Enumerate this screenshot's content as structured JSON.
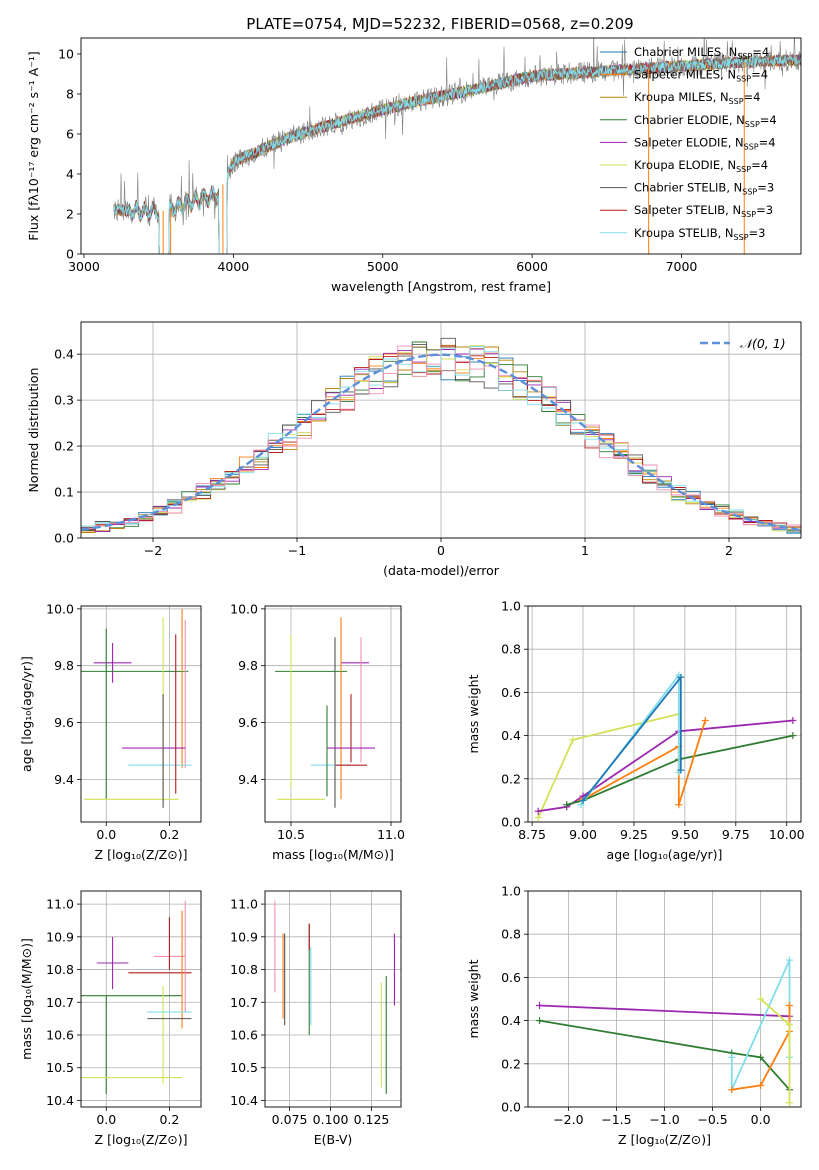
{
  "title": "PLATE=0754, MJD=52232, FIBERID=0568, z=0.209",
  "colors": {
    "chab_miles": "#1f77b4",
    "salp_miles": "#ff7f0e",
    "krou_miles": "#b8860b",
    "chab_elodie": "#2e7d32",
    "salp_elodie": "#9c27b0",
    "krou_elodie": "#d4e157",
    "chab_stelib": "#555555",
    "salp_stelib": "#b71c1c",
    "krou_stelib": "#80deea",
    "gauss": "#5b8fdc",
    "pink": "#f48fb1",
    "grey_sed": "#808080"
  },
  "chart_data": [
    {
      "id": "spectrum",
      "type": "line",
      "xlabel": "wavelength [Angstrom, rest frame]",
      "ylabel": "Flux [fλ10⁻¹⁷ erg cm⁻² s⁻¹ A⁻¹]",
      "xlim": [
        2980,
        7800
      ],
      "ylim": [
        0,
        10.8
      ],
      "xticks": [
        "3000",
        "4000",
        "5000",
        "6000",
        "7000"
      ],
      "yticks": [
        "0",
        "2",
        "4",
        "6",
        "8",
        "10"
      ],
      "continuum_x": [
        3200,
        3500,
        3900,
        4000,
        4400,
        4800,
        5200,
        5600,
        6000,
        6400,
        6800,
        7400,
        7800
      ],
      "continuum_y": [
        2.2,
        2.1,
        3.0,
        4.6,
        5.9,
        6.8,
        7.6,
        8.2,
        8.9,
        9.1,
        9.3,
        9.6,
        9.7
      ],
      "legend": [
        {
          "label": "Chabrier MILES, N",
          "sub": "SSP",
          "tail": "=4",
          "color": "chab_miles"
        },
        {
          "label": "Salpeter MILES, N",
          "sub": "SSP",
          "tail": "=4",
          "color": "salp_miles"
        },
        {
          "label": "Kroupa MILES, N",
          "sub": "SSP",
          "tail": "=4",
          "color": "krou_miles"
        },
        {
          "label": "Chabrier ELODIE, N",
          "sub": "SSP",
          "tail": "=4",
          "color": "chab_elodie"
        },
        {
          "label": "Salpeter ELODIE, N",
          "sub": "SSP",
          "tail": "=4",
          "color": "salp_elodie"
        },
        {
          "label": "Kroupa ELODIE, N",
          "sub": "SSP",
          "tail": "=4",
          "color": "krou_elodie"
        },
        {
          "label": "Chabrier STELIB, N",
          "sub": "SSP",
          "tail": "=3",
          "color": "chab_stelib"
        },
        {
          "label": "Salpeter STELIB, N",
          "sub": "SSP",
          "tail": "=3",
          "color": "salp_stelib"
        },
        {
          "label": "Kroupa STELIB, N",
          "sub": "SSP",
          "tail": "=3",
          "color": "krou_stelib"
        }
      ]
    },
    {
      "id": "residuals",
      "type": "line",
      "xlabel": "(data-model)/error",
      "ylabel": "Normed distribution",
      "xlim": [
        -2.5,
        2.5
      ],
      "ylim": [
        0,
        0.47
      ],
      "xticks": [
        "−2",
        "−1",
        "0",
        "1",
        "2"
      ],
      "yticks": [
        "0.0",
        "0.1",
        "0.2",
        "0.3",
        "0.4"
      ],
      "legend_label": "𝒩(0, 1)",
      "gauss_mu": 0,
      "gauss_sigma": 1
    },
    {
      "id": "age_vs_Z",
      "type": "scatter",
      "xlabel": "Z [log₁₀(Z/Z⊙)]",
      "ylabel": "age  [log₁₀(age/yr)]",
      "xlim": [
        -0.08,
        0.3
      ],
      "ylim": [
        9.25,
        10.01
      ],
      "xticks": [
        "0.0",
        "0.2"
      ],
      "yticks": [
        "9.4",
        "9.6",
        "9.8",
        "10.0"
      ],
      "points": [
        {
          "x": 0.02,
          "y": 9.81,
          "ex": 0.06,
          "ey": 0.07,
          "color": "salp_elodie"
        },
        {
          "x": 0.08,
          "y": 9.78,
          "ex": 0.18,
          "ey": 0.0,
          "color": "chab_elodie"
        },
        {
          "x": 0.0,
          "y": 9.63,
          "ex": 0.0,
          "ey": 0.3,
          "color": "chab_elodie"
        },
        {
          "x": 0.18,
          "y": 9.65,
          "ex": 0.0,
          "ey": 0.32,
          "color": "krou_elodie"
        },
        {
          "x": 0.24,
          "y": 9.72,
          "ex": 0.0,
          "ey": 0.28,
          "color": "salp_miles"
        },
        {
          "x": 0.25,
          "y": 9.7,
          "ex": 0.0,
          "ey": 0.26,
          "color": "pink"
        },
        {
          "x": 0.15,
          "y": 9.51,
          "ex": 0.1,
          "ey": 0.0,
          "color": "salp_elodie"
        },
        {
          "x": 0.17,
          "y": 9.45,
          "ex": 0.1,
          "ey": 0.0,
          "color": "krou_stelib"
        },
        {
          "x": 0.08,
          "y": 9.33,
          "ex": 0.15,
          "ey": 0.0,
          "color": "krou_elodie"
        },
        {
          "x": 0.18,
          "y": 9.5,
          "ex": 0.0,
          "ey": 0.2,
          "color": "chab_stelib"
        },
        {
          "x": 0.22,
          "y": 9.63,
          "ex": 0.0,
          "ey": 0.28,
          "color": "salp_stelib"
        }
      ]
    },
    {
      "id": "age_vs_mass",
      "type": "scatter",
      "xlabel": "mass [log₁₀(M/M⊙)]",
      "ylabel": "",
      "xlim": [
        10.37,
        11.05
      ],
      "ylim": [
        9.25,
        10.01
      ],
      "xticks": [
        "10.5",
        "11.0"
      ],
      "yticks": [
        "9.4",
        "9.6",
        "9.8",
        "10.0"
      ],
      "points": [
        {
          "x": 10.6,
          "y": 9.78,
          "ex": 0.18,
          "ey": 0.0,
          "color": "chab_elodie"
        },
        {
          "x": 10.82,
          "y": 9.81,
          "ex": 0.07,
          "ey": 0.0,
          "color": "salp_elodie"
        },
        {
          "x": 10.5,
          "y": 9.64,
          "ex": 0.0,
          "ey": 0.27,
          "color": "krou_elodie"
        },
        {
          "x": 10.75,
          "y": 9.65,
          "ex": 0.0,
          "ey": 0.32,
          "color": "salp_miles"
        },
        {
          "x": 10.72,
          "y": 9.6,
          "ex": 0.0,
          "ey": 0.3,
          "color": "chab_stelib"
        },
        {
          "x": 10.85,
          "y": 9.68,
          "ex": 0.0,
          "ey": 0.22,
          "color": "pink"
        },
        {
          "x": 10.8,
          "y": 9.58,
          "ex": 0.0,
          "ey": 0.12,
          "color": "salp_stelib"
        },
        {
          "x": 10.8,
          "y": 9.51,
          "ex": 0.12,
          "ey": 0.0,
          "color": "salp_elodie"
        },
        {
          "x": 10.7,
          "y": 9.45,
          "ex": 0.1,
          "ey": 0.0,
          "color": "krou_stelib"
        },
        {
          "x": 10.8,
          "y": 9.45,
          "ex": 0.08,
          "ey": 0.0,
          "color": "salp_stelib"
        },
        {
          "x": 10.55,
          "y": 9.33,
          "ex": 0.12,
          "ey": 0.0,
          "color": "krou_elodie"
        },
        {
          "x": 10.68,
          "y": 9.5,
          "ex": 0.0,
          "ey": 0.16,
          "color": "chab_elodie"
        }
      ]
    },
    {
      "id": "weight_vs_age",
      "type": "line",
      "xlabel": "age  [log₁₀(age/yr)]",
      "ylabel": "mass weight",
      "xlim": [
        8.73,
        10.07
      ],
      "ylim": [
        0,
        1
      ],
      "xticks": [
        "8.75",
        "9.00",
        "9.25",
        "9.50",
        "9.75",
        "10.00"
      ],
      "yticks": [
        "0.0",
        "0.2",
        "0.4",
        "0.6",
        "0.8",
        "1.0"
      ],
      "series": [
        {
          "x": [
            8.78,
            8.95,
            9.47
          ],
          "y": [
            0.02,
            0.38,
            0.5
          ],
          "color": "krou_elodie"
        },
        {
          "x": [
            8.78,
            8.92,
            9.0,
            9.47,
            10.03
          ],
          "y": [
            0.05,
            0.07,
            0.12,
            0.42,
            0.47
          ],
          "color": "salp_elodie"
        },
        {
          "x": [
            8.92,
            9.0,
            9.47,
            10.03
          ],
          "y": [
            0.08,
            0.1,
            0.29,
            0.4
          ],
          "color": "chab_elodie"
        },
        {
          "x": [
            8.99,
            9.47,
            9.47,
            9.6
          ],
          "y": [
            0.1,
            0.35,
            0.08,
            0.47
          ],
          "color": "salp_miles"
        },
        {
          "x": [
            8.99,
            9.47,
            9.47
          ],
          "y": [
            0.08,
            0.68,
            0.23
          ],
          "color": "krou_stelib"
        },
        {
          "x": [
            9.0,
            9.48,
            9.48
          ],
          "y": [
            0.1,
            0.67,
            0.24
          ],
          "color": "chab_miles"
        }
      ]
    },
    {
      "id": "mass_vs_Z",
      "type": "scatter",
      "xlabel": "Z [log₁₀(Z/Z⊙)]",
      "ylabel": "mass [log₁₀(M/M⊙)]",
      "xlim": [
        -0.08,
        0.3
      ],
      "ylim": [
        10.38,
        11.04
      ],
      "xticks": [
        "0.0",
        "0.2"
      ],
      "yticks": [
        "10.4",
        "10.5",
        "10.6",
        "10.7",
        "10.8",
        "10.9",
        "11.0"
      ],
      "points": [
        {
          "x": 0.02,
          "y": 10.82,
          "ex": 0.05,
          "ey": 0.0,
          "color": "salp_elodie"
        },
        {
          "x": 0.02,
          "y": 10.82,
          "ex": 0.0,
          "ey": 0.08,
          "color": "salp_elodie"
        },
        {
          "x": 0.08,
          "y": 10.72,
          "ex": 0.16,
          "ey": 0.0,
          "color": "chab_elodie"
        },
        {
          "x": 0.0,
          "y": 10.57,
          "ex": 0.0,
          "ey": 0.15,
          "color": "chab_elodie"
        },
        {
          "x": 0.08,
          "y": 10.47,
          "ex": 0.16,
          "ey": 0.0,
          "color": "krou_elodie"
        },
        {
          "x": 0.18,
          "y": 10.6,
          "ex": 0.0,
          "ey": 0.15,
          "color": "krou_elodie"
        },
        {
          "x": 0.2,
          "y": 10.84,
          "ex": 0.05,
          "ey": 0.0,
          "color": "pink"
        },
        {
          "x": 0.2,
          "y": 10.88,
          "ex": 0.0,
          "ey": 0.08,
          "color": "salp_stelib"
        },
        {
          "x": 0.17,
          "y": 10.79,
          "ex": 0.1,
          "ey": 0.0,
          "color": "salp_stelib"
        },
        {
          "x": 0.24,
          "y": 10.8,
          "ex": 0.0,
          "ey": 0.18,
          "color": "salp_miles"
        },
        {
          "x": 0.25,
          "y": 10.84,
          "ex": 0.0,
          "ey": 0.17,
          "color": "pink"
        },
        {
          "x": 0.2,
          "y": 10.67,
          "ex": 0.07,
          "ey": 0.0,
          "color": "krou_stelib"
        },
        {
          "x": 0.2,
          "y": 10.65,
          "ex": 0.07,
          "ey": 0.0,
          "color": "chab_stelib"
        }
      ]
    },
    {
      "id": "mass_vs_EBV",
      "type": "scatter",
      "xlabel": "E(B-V)",
      "ylabel": "",
      "xlim": [
        0.06,
        0.143
      ],
      "ylim": [
        10.38,
        11.04
      ],
      "xticks": [
        "0.075",
        "0.100",
        "0.125"
      ],
      "yticks": [
        "10.4",
        "10.5",
        "10.6",
        "10.7",
        "10.8",
        "10.9",
        "11.0"
      ],
      "points": [
        {
          "x": 0.066,
          "y": 10.87,
          "ex": 0.0,
          "ey": 0.14,
          "color": "pink"
        },
        {
          "x": 0.071,
          "y": 10.78,
          "ex": 0.0,
          "ey": 0.13,
          "color": "salp_miles"
        },
        {
          "x": 0.072,
          "y": 10.77,
          "ex": 0.0,
          "ey": 0.14,
          "color": "chab_stelib"
        },
        {
          "x": 0.087,
          "y": 10.77,
          "ex": 0.0,
          "ey": 0.17,
          "color": "chab_elodie"
        },
        {
          "x": 0.087,
          "y": 10.9,
          "ex": 0.0,
          "ey": 0.04,
          "color": "salp_stelib"
        },
        {
          "x": 0.088,
          "y": 10.75,
          "ex": 0.0,
          "ey": 0.12,
          "color": "krou_stelib"
        },
        {
          "x": 0.131,
          "y": 10.6,
          "ex": 0.0,
          "ey": 0.16,
          "color": "krou_elodie"
        },
        {
          "x": 0.134,
          "y": 10.6,
          "ex": 0.0,
          "ey": 0.18,
          "color": "chab_elodie"
        },
        {
          "x": 0.139,
          "y": 10.8,
          "ex": 0.0,
          "ey": 0.11,
          "color": "salp_elodie"
        }
      ]
    },
    {
      "id": "weight_vs_Z",
      "type": "line",
      "xlabel": "Z [log₁₀(Z/Z⊙)]",
      "ylabel": "mass weight",
      "xlim": [
        -2.42,
        0.42
      ],
      "ylim": [
        0,
        1
      ],
      "xticks": [
        "−2.0",
        "−1.5",
        "−1.0",
        "−0.5",
        "0.0"
      ],
      "yticks": [
        "0.0",
        "0.2",
        "0.4",
        "0.6",
        "0.8",
        "1.0"
      ],
      "series": [
        {
          "x": [
            -2.3,
            0.3
          ],
          "y": [
            0.47,
            0.42
          ],
          "color": "salp_elodie"
        },
        {
          "x": [
            -2.3,
            -0.3,
            0.0,
            0.3
          ],
          "y": [
            0.4,
            0.25,
            0.23,
            0.08
          ],
          "color": "chab_elodie"
        },
        {
          "x": [
            -0.3,
            -0.3,
            0.3,
            0.3
          ],
          "y": [
            0.23,
            0.08,
            0.68,
            0.23
          ],
          "color": "krou_stelib"
        },
        {
          "x": [
            -0.3,
            0.0,
            0.3,
            0.3
          ],
          "y": [
            0.08,
            0.1,
            0.35,
            0.47
          ],
          "color": "salp_miles"
        },
        {
          "x": [
            0.0,
            0.3,
            0.3
          ],
          "y": [
            0.5,
            0.38,
            0.02
          ],
          "color": "krou_elodie"
        }
      ]
    }
  ]
}
